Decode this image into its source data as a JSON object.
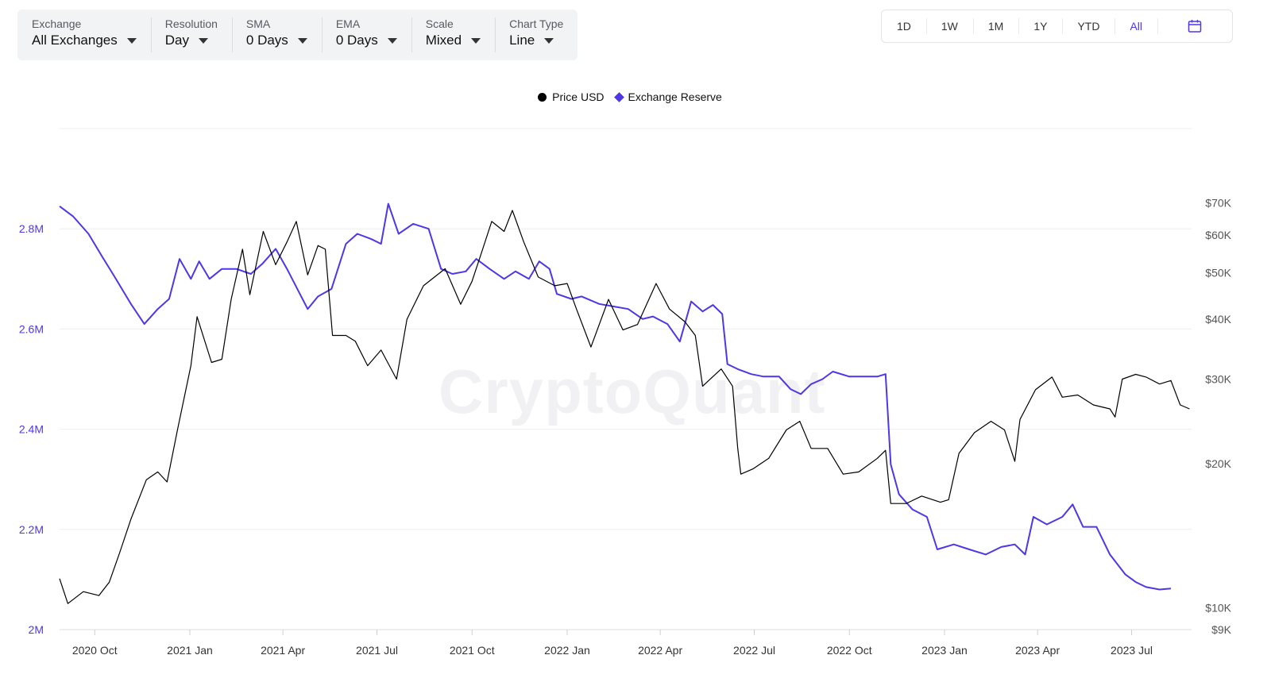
{
  "toolbar": {
    "controls": [
      {
        "label": "Exchange",
        "value": "All Exchanges"
      },
      {
        "label": "Resolution",
        "value": "Day"
      },
      {
        "label": "SMA",
        "value": "0 Days"
      },
      {
        "label": "EMA",
        "value": "0 Days"
      },
      {
        "label": "Scale",
        "value": "Mixed"
      },
      {
        "label": "Chart Type",
        "value": "Line"
      }
    ]
  },
  "range": {
    "buttons": [
      "1D",
      "1W",
      "1M",
      "1Y",
      "YTD",
      "All"
    ],
    "active": "All",
    "calendar_icon": "calendar-icon"
  },
  "watermark": "CryptoQuant",
  "colors": {
    "price": "#000000",
    "reserve": "#4d37e8",
    "grid": "#eeeeef",
    "axis_left": "#4d37e8",
    "axis_right": "#555555"
  },
  "chart_data": {
    "type": "line",
    "legend": [
      {
        "name": "Price USD",
        "marker": "circle",
        "color": "#000000"
      },
      {
        "name": "Exchange Reserve",
        "marker": "diamond",
        "color": "#4d37e8"
      }
    ],
    "legend_position": "top-center",
    "grid": true,
    "x_range": [
      "2020-08-28",
      "2023-08-28"
    ],
    "x_ticks": [
      {
        "label": "2020 Oct",
        "date": "2020-10-01"
      },
      {
        "label": "2021 Jan",
        "date": "2021-01-01"
      },
      {
        "label": "2021 Apr",
        "date": "2021-04-01"
      },
      {
        "label": "2021 Jul",
        "date": "2021-07-01"
      },
      {
        "label": "2021 Oct",
        "date": "2021-10-01"
      },
      {
        "label": "2022 Jan",
        "date": "2022-01-01"
      },
      {
        "label": "2022 Apr",
        "date": "2022-04-01"
      },
      {
        "label": "2022 Jul",
        "date": "2022-07-01"
      },
      {
        "label": "2022 Oct",
        "date": "2022-10-01"
      },
      {
        "label": "2023 Jan",
        "date": "2023-01-01"
      },
      {
        "label": "2023 Apr",
        "date": "2023-04-01"
      },
      {
        "label": "2023 Jul",
        "date": "2023-07-01"
      }
    ],
    "y_left": {
      "name": "Exchange Reserve",
      "scale": "linear",
      "range": [
        2000000,
        3000000
      ],
      "ticks": [
        {
          "label": "2M",
          "value": 2000000
        },
        {
          "label": "2.2M",
          "value": 2200000
        },
        {
          "label": "2.4M",
          "value": 2400000
        },
        {
          "label": "2.6M",
          "value": 2600000
        },
        {
          "label": "2.8M",
          "value": 2800000
        }
      ]
    },
    "y_right": {
      "name": "Price USD",
      "scale": "log",
      "range": [
        9000,
        100000
      ],
      "ticks": [
        {
          "label": "$9K",
          "value": 9000
        },
        {
          "label": "$10K",
          "value": 10000
        },
        {
          "label": "$20K",
          "value": 20000
        },
        {
          "label": "$30K",
          "value": 30000
        },
        {
          "label": "$40K",
          "value": 40000
        },
        {
          "label": "$50K",
          "value": 50000
        },
        {
          "label": "$60K",
          "value": 60000
        },
        {
          "label": "$70K",
          "value": 70000
        }
      ]
    },
    "series": [
      {
        "name": "Exchange Reserve",
        "axis": "left",
        "color": "#4d37e8",
        "points": [
          [
            "2020-08-28",
            2845000
          ],
          [
            "2020-09-10",
            2825000
          ],
          [
            "2020-09-25",
            2790000
          ],
          [
            "2020-10-08",
            2745000
          ],
          [
            "2020-10-20",
            2705000
          ],
          [
            "2020-11-05",
            2650000
          ],
          [
            "2020-11-18",
            2610000
          ],
          [
            "2020-12-01",
            2640000
          ],
          [
            "2020-12-12",
            2660000
          ],
          [
            "2020-12-22",
            2740000
          ],
          [
            "2021-01-02",
            2700000
          ],
          [
            "2021-01-10",
            2735000
          ],
          [
            "2021-01-20",
            2700000
          ],
          [
            "2021-02-01",
            2720000
          ],
          [
            "2021-02-15",
            2720000
          ],
          [
            "2021-03-01",
            2710000
          ],
          [
            "2021-03-12",
            2730000
          ],
          [
            "2021-03-25",
            2760000
          ],
          [
            "2021-04-05",
            2720000
          ],
          [
            "2021-04-15",
            2680000
          ],
          [
            "2021-04-25",
            2640000
          ],
          [
            "2021-05-05",
            2665000
          ],
          [
            "2021-05-18",
            2680000
          ],
          [
            "2021-06-01",
            2770000
          ],
          [
            "2021-06-12",
            2790000
          ],
          [
            "2021-06-25",
            2780000
          ],
          [
            "2021-07-05",
            2770000
          ],
          [
            "2021-07-12",
            2850000
          ],
          [
            "2021-07-22",
            2790000
          ],
          [
            "2021-08-05",
            2810000
          ],
          [
            "2021-08-20",
            2800000
          ],
          [
            "2021-09-01",
            2720000
          ],
          [
            "2021-09-12",
            2710000
          ],
          [
            "2021-09-25",
            2715000
          ],
          [
            "2021-10-05",
            2740000
          ],
          [
            "2021-10-18",
            2720000
          ],
          [
            "2021-11-01",
            2700000
          ],
          [
            "2021-11-12",
            2715000
          ],
          [
            "2021-11-25",
            2700000
          ],
          [
            "2021-12-05",
            2735000
          ],
          [
            "2021-12-15",
            2720000
          ],
          [
            "2021-12-22",
            2670000
          ],
          [
            "2022-01-05",
            2660000
          ],
          [
            "2022-01-15",
            2665000
          ],
          [
            "2022-02-01",
            2650000
          ],
          [
            "2022-02-15",
            2645000
          ],
          [
            "2022-03-01",
            2640000
          ],
          [
            "2022-03-15",
            2620000
          ],
          [
            "2022-03-25",
            2625000
          ],
          [
            "2022-04-08",
            2610000
          ],
          [
            "2022-04-20",
            2575000
          ],
          [
            "2022-05-01",
            2655000
          ],
          [
            "2022-05-12",
            2635000
          ],
          [
            "2022-05-22",
            2648000
          ],
          [
            "2022-05-31",
            2630000
          ],
          [
            "2022-06-05",
            2530000
          ],
          [
            "2022-06-15",
            2520000
          ],
          [
            "2022-06-28",
            2510000
          ],
          [
            "2022-07-10",
            2505000
          ],
          [
            "2022-07-25",
            2505000
          ],
          [
            "2022-08-05",
            2480000
          ],
          [
            "2022-08-15",
            2470000
          ],
          [
            "2022-08-25",
            2490000
          ],
          [
            "2022-09-05",
            2500000
          ],
          [
            "2022-09-15",
            2515000
          ],
          [
            "2022-10-01",
            2505000
          ],
          [
            "2022-10-15",
            2505000
          ],
          [
            "2022-10-28",
            2505000
          ],
          [
            "2022-11-05",
            2510000
          ],
          [
            "2022-11-10",
            2330000
          ],
          [
            "2022-11-18",
            2270000
          ],
          [
            "2022-12-01",
            2240000
          ],
          [
            "2022-12-15",
            2225000
          ],
          [
            "2022-12-25",
            2160000
          ],
          [
            "2023-01-10",
            2170000
          ],
          [
            "2023-01-25",
            2160000
          ],
          [
            "2023-02-10",
            2150000
          ],
          [
            "2023-02-25",
            2165000
          ],
          [
            "2023-03-10",
            2170000
          ],
          [
            "2023-03-20",
            2150000
          ],
          [
            "2023-03-28",
            2225000
          ],
          [
            "2023-04-10",
            2210000
          ],
          [
            "2023-04-25",
            2225000
          ],
          [
            "2023-05-05",
            2250000
          ],
          [
            "2023-05-15",
            2205000
          ],
          [
            "2023-05-28",
            2205000
          ],
          [
            "2023-06-10",
            2150000
          ],
          [
            "2023-06-25",
            2110000
          ],
          [
            "2023-07-05",
            2095000
          ],
          [
            "2023-07-15",
            2085000
          ],
          [
            "2023-07-28",
            2080000
          ],
          [
            "2023-08-08",
            2082000
          ]
        ]
      },
      {
        "name": "Price USD",
        "axis": "right",
        "color": "#000000",
        "points": [
          [
            "2020-08-28",
            11500
          ],
          [
            "2020-09-05",
            10200
          ],
          [
            "2020-09-20",
            10800
          ],
          [
            "2020-10-05",
            10600
          ],
          [
            "2020-10-15",
            11300
          ],
          [
            "2020-10-25",
            13000
          ],
          [
            "2020-11-05",
            15300
          ],
          [
            "2020-11-20",
            18500
          ],
          [
            "2020-12-01",
            19200
          ],
          [
            "2020-12-10",
            18300
          ],
          [
            "2020-12-20",
            23500
          ],
          [
            "2021-01-02",
            32000
          ],
          [
            "2021-01-08",
            40500
          ],
          [
            "2021-01-22",
            32500
          ],
          [
            "2021-02-01",
            33000
          ],
          [
            "2021-02-10",
            44000
          ],
          [
            "2021-02-21",
            56000
          ],
          [
            "2021-02-28",
            45000
          ],
          [
            "2021-03-13",
            61000
          ],
          [
            "2021-03-25",
            52000
          ],
          [
            "2021-04-05",
            58000
          ],
          [
            "2021-04-14",
            64000
          ],
          [
            "2021-04-25",
            49500
          ],
          [
            "2021-05-05",
            57000
          ],
          [
            "2021-05-12",
            56000
          ],
          [
            "2021-05-19",
            37000
          ],
          [
            "2021-06-01",
            37000
          ],
          [
            "2021-06-10",
            36000
          ],
          [
            "2021-06-22",
            32000
          ],
          [
            "2021-07-05",
            34500
          ],
          [
            "2021-07-20",
            30000
          ],
          [
            "2021-07-30",
            40000
          ],
          [
            "2021-08-15",
            47000
          ],
          [
            "2021-09-05",
            51000
          ],
          [
            "2021-09-20",
            43000
          ],
          [
            "2021-10-01",
            48000
          ],
          [
            "2021-10-10",
            55000
          ],
          [
            "2021-10-20",
            64000
          ],
          [
            "2021-11-01",
            61000
          ],
          [
            "2021-11-09",
            67500
          ],
          [
            "2021-11-20",
            58000
          ],
          [
            "2021-12-04",
            49000
          ],
          [
            "2021-12-20",
            47000
          ],
          [
            "2022-01-01",
            47500
          ],
          [
            "2022-01-10",
            42000
          ],
          [
            "2022-01-24",
            35000
          ],
          [
            "2022-02-10",
            44000
          ],
          [
            "2022-02-24",
            38000
          ],
          [
            "2022-03-10",
            39000
          ],
          [
            "2022-03-28",
            47500
          ],
          [
            "2022-04-10",
            42000
          ],
          [
            "2022-04-25",
            39500
          ],
          [
            "2022-05-05",
            37000
          ],
          [
            "2022-05-12",
            29000
          ],
          [
            "2022-05-30",
            31500
          ],
          [
            "2022-06-10",
            29000
          ],
          [
            "2022-06-15",
            21500
          ],
          [
            "2022-06-18",
            19000
          ],
          [
            "2022-06-30",
            19500
          ],
          [
            "2022-07-15",
            20500
          ],
          [
            "2022-08-01",
            23500
          ],
          [
            "2022-08-14",
            24500
          ],
          [
            "2022-08-25",
            21500
          ],
          [
            "2022-09-10",
            21500
          ],
          [
            "2022-09-25",
            19000
          ],
          [
            "2022-10-10",
            19200
          ],
          [
            "2022-10-28",
            20500
          ],
          [
            "2022-11-05",
            21300
          ],
          [
            "2022-11-10",
            16500
          ],
          [
            "2022-11-25",
            16500
          ],
          [
            "2022-12-10",
            17100
          ],
          [
            "2022-12-28",
            16600
          ],
          [
            "2023-01-05",
            16800
          ],
          [
            "2023-01-15",
            21000
          ],
          [
            "2023-01-30",
            23200
          ],
          [
            "2023-02-15",
            24500
          ],
          [
            "2023-02-28",
            23500
          ],
          [
            "2023-03-10",
            20200
          ],
          [
            "2023-03-15",
            24700
          ],
          [
            "2023-03-30",
            28500
          ],
          [
            "2023-04-15",
            30300
          ],
          [
            "2023-04-25",
            27500
          ],
          [
            "2023-05-10",
            27800
          ],
          [
            "2023-05-25",
            26500
          ],
          [
            "2023-06-10",
            26000
          ],
          [
            "2023-06-15",
            25000
          ],
          [
            "2023-06-22",
            30000
          ],
          [
            "2023-07-05",
            30700
          ],
          [
            "2023-07-15",
            30300
          ],
          [
            "2023-07-28",
            29300
          ],
          [
            "2023-08-08",
            29800
          ],
          [
            "2023-08-17",
            26500
          ],
          [
            "2023-08-26",
            26000
          ]
        ]
      }
    ]
  }
}
